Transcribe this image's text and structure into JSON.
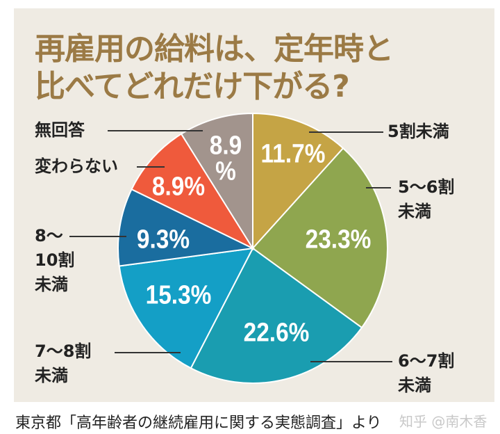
{
  "chart_data": {
    "type": "pie",
    "title": [
      "再雇用の給料は、定年時と",
      "比べてどれだけ下がる?"
    ],
    "slices": [
      {
        "label": "5割未満",
        "value": 11.7,
        "display": "11.7%",
        "color": "#c5a445"
      },
      {
        "label": "5～6割未満",
        "value": 23.3,
        "display": "23.3%",
        "color": "#8fa64f"
      },
      {
        "label": "6～7割未満",
        "value": 22.6,
        "display": "22.6%",
        "color": "#1a9db0"
      },
      {
        "label": "7～8割未満",
        "value": 15.3,
        "display": "15.3%",
        "color": "#149fc6"
      },
      {
        "label": "8～10割未満",
        "value": 9.3,
        "display": "9.3%",
        "color": "#1a6d9f"
      },
      {
        "label": "変わらない",
        "value": 8.9,
        "display": "8.9%",
        "color": "#ef5a3c"
      },
      {
        "label": "無回答",
        "value": 8.9,
        "display": "8.9%",
        "color": "#a2948d"
      }
    ],
    "label_lines": {
      "s0": [
        "5割未満"
      ],
      "s1": [
        "5～6割",
        "未満"
      ],
      "s2": [
        "6～7割",
        "未満"
      ],
      "s3": [
        "7～8割",
        "未満"
      ],
      "s4": [
        "8～",
        "10割",
        "未満"
      ],
      "s5": [
        "変わらない"
      ],
      "s6": [
        "無回答"
      ],
      "s6_pct": [
        "8.9",
        "%"
      ]
    }
  },
  "footer": {
    "source": "東京都「高年齢者の継続雇用に関する実態調査」より",
    "watermark": "知乎 @南木香"
  }
}
